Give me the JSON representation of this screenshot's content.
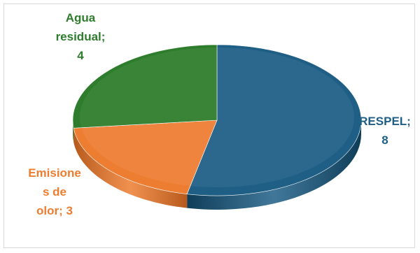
{
  "chart_data": {
    "type": "pie",
    "title": "",
    "categories": [
      "RESPEL",
      "Emisiones de olor",
      "Agua residual"
    ],
    "values": [
      8,
      3,
      4
    ],
    "label_lines": [
      [
        "RESPEL;",
        "8"
      ],
      [
        "Emisione",
        "s de",
        "olor; 3"
      ],
      [
        "Agua",
        "residual;",
        "4"
      ]
    ],
    "colors": {
      "top": [
        "#1f5f86",
        "#ed7d31",
        "#2e7d2c"
      ],
      "side": [
        "#0f3d58",
        "#b65a1c",
        "#1f5a1d"
      ],
      "label": [
        "#1f5f86",
        "#ed7d31",
        "#2e7d2c"
      ]
    },
    "start_angle_deg": -90,
    "direction": "clockwise",
    "style": "3d",
    "legend": "none"
  }
}
